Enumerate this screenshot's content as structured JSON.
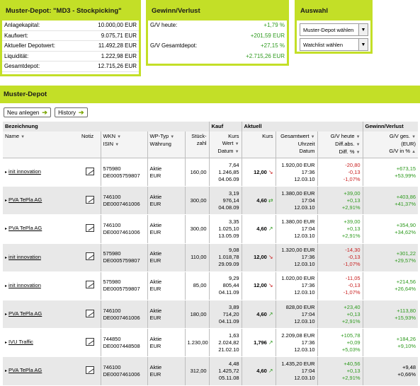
{
  "depot_summary": {
    "title": "Muster-Depot: \"MD3 - Stockpicking\"",
    "rows": [
      {
        "label": "Anlagekapital:",
        "value": "10.000,00 EUR"
      },
      {
        "label": "Kaufwert:",
        "value": "9.075,71 EUR"
      },
      {
        "label": "Aktueller Depotwert:",
        "value": "11.492,28 EUR"
      },
      {
        "label": "Liquidität:",
        "value": "1.222,98 EUR"
      },
      {
        "label": "Gesamtdepot:",
        "value": "12.715,26 EUR"
      }
    ]
  },
  "gv_panel": {
    "title": "Gewinn/Verlust",
    "heute_label": "G/V heute:",
    "heute_pct": "+1,79 %",
    "heute_abs": "+201,59 EUR",
    "gesamt_label": "G/V Gesamtdepot:",
    "gesamt_pct": "+27,15 %",
    "gesamt_abs": "+2.715,26 EUR"
  },
  "auswahl": {
    "title": "Auswahl",
    "select1": "Muster-Depot wählen",
    "select2": "Watchlist wählen"
  },
  "muster_depot": {
    "title": "Muster-Depot",
    "btn_new": "Neu anlegen",
    "btn_history": "History"
  },
  "table_headers": {
    "bezeichnung": "Bezeichnung",
    "kauf": "Kauf",
    "aktuell": "Aktuell",
    "gv": "Gewinn/Verlust",
    "name": "Name",
    "notiz": "Notiz",
    "wkn": "WKN",
    "isin": "ISIN",
    "wptyp": "WP-Typ",
    "waehrung": "Währung",
    "stueck1": "Stück-",
    "stueck2": "zahl",
    "kurs_k": "Kurs",
    "wert_k": "Wert",
    "datum_k": "Datum",
    "kurs_a": "Kurs",
    "gesamtwert": "Gesamtwert",
    "uhrzeit": "Uhrzeit",
    "datum_a": "Datum",
    "gvheute": "G/V heute",
    "diffabs": "Diff.abs.",
    "diffpct": "Diff. %",
    "gvges1": "G/V ges.",
    "gvges2": "(EUR)",
    "gvges3": "G/V in %"
  },
  "rows": [
    {
      "name": "init innovation",
      "wkn": "575980",
      "isin": "DE0005759807",
      "typ": "Aktie",
      "cur": "EUR",
      "stk": "160,00",
      "kk": "7,64",
      "kw": "1.246,85",
      "kd": "04.06.09",
      "kurs": "12,00",
      "trend": "down",
      "gw": "1.920,00 EUR",
      "zeit": "17:36",
      "datum": "12.03.10",
      "h1": "-20,80",
      "h2": "-0,13",
      "h3": "-1,07%",
      "hs": "neg",
      "g1": "+673,15",
      "g2": "+53,99%",
      "gs": "pos"
    },
    {
      "name": "PVA TePla AG",
      "wkn": "746100",
      "isin": "DE0007461006",
      "typ": "Aktie",
      "cur": "EUR",
      "stk": "300,00",
      "kk": "3,19",
      "kw": "976,14",
      "kd": "04.08.09",
      "kurs": "4,60",
      "trend": "eq",
      "gw": "1.380,00 EUR",
      "zeit": "17:04",
      "datum": "12.03.10",
      "h1": "+39,00",
      "h2": "+0,13",
      "h3": "+2,91%",
      "hs": "pos",
      "g1": "+403,86",
      "g2": "+41,37%",
      "gs": "pos"
    },
    {
      "name": "PVA TePla AG",
      "wkn": "746100",
      "isin": "DE0007461006",
      "typ": "Aktie",
      "cur": "EUR",
      "stk": "300,00",
      "kk": "3,35",
      "kw": "1.025,10",
      "kd": "13.05.09",
      "kurs": "4,60",
      "trend": "up",
      "gw": "1.380,00 EUR",
      "zeit": "17:04",
      "datum": "12.03.10",
      "h1": "+39,00",
      "h2": "+0,13",
      "h3": "+2,91%",
      "hs": "pos",
      "g1": "+354,90",
      "g2": "+34,62%",
      "gs": "pos"
    },
    {
      "name": "init innovation",
      "wkn": "575980",
      "isin": "DE0005759807",
      "typ": "Aktie",
      "cur": "EUR",
      "stk": "110,00",
      "kk": "9,08",
      "kw": "1.018,78",
      "kd": "29.09.09",
      "kurs": "12,00",
      "trend": "down",
      "gw": "1.320,00 EUR",
      "zeit": "17:36",
      "datum": "12.03.10",
      "h1": "-14,30",
      "h2": "-0,13",
      "h3": "-1,07%",
      "hs": "neg",
      "g1": "+301,22",
      "g2": "+29,57%",
      "gs": "pos"
    },
    {
      "name": "init innovation",
      "wkn": "575980",
      "isin": "DE0005759807",
      "typ": "Aktie",
      "cur": "EUR",
      "stk": "85,00",
      "kk": "9,29",
      "kw": "805,44",
      "kd": "04.11.09",
      "kurs": "12,00",
      "trend": "down",
      "gw": "1.020,00 EUR",
      "zeit": "17:36",
      "datum": "12.03.10",
      "h1": "-11,05",
      "h2": "-0,13",
      "h3": "-1,07%",
      "hs": "neg",
      "g1": "+214,56",
      "g2": "+26,64%",
      "gs": "pos"
    },
    {
      "name": "PVA TePla AG",
      "wkn": "746100",
      "isin": "DE0007461006",
      "typ": "Aktie",
      "cur": "EUR",
      "stk": "180,00",
      "kk": "3,89",
      "kw": "714,20",
      "kd": "04.11.09",
      "kurs": "4,60",
      "trend": "up",
      "gw": "828,00 EUR",
      "zeit": "17:04",
      "datum": "12.03.10",
      "h1": "+23,40",
      "h2": "+0,13",
      "h3": "+2,91%",
      "hs": "pos",
      "g1": "+113,80",
      "g2": "+15,93%",
      "gs": "pos"
    },
    {
      "name": "IVU Traffic",
      "wkn": "744850",
      "isin": "DE0007448508",
      "typ": "Aktie",
      "cur": "EUR",
      "stk": "1.230,00",
      "kk": "1,63",
      "kw": "2.024,82",
      "kd": "21.02.10",
      "kurs": "1,796",
      "trend": "up",
      "gw": "2.209,08 EUR",
      "zeit": "17:36",
      "datum": "12.03.10",
      "h1": "+105,78",
      "h2": "+0,09",
      "h3": "+5,03%",
      "hs": "pos",
      "g1": "+184,26",
      "g2": "+9,10%",
      "gs": "pos"
    },
    {
      "name": "PVA TePla AG",
      "wkn": "746100",
      "isin": "DE0007461006",
      "typ": "Aktie",
      "cur": "EUR",
      "stk": "312,00",
      "kk": "4,48",
      "kw": "1.425,72",
      "kd": "05.11.08",
      "kurs": "4,60",
      "trend": "up",
      "gw": "1.435,20 EUR",
      "zeit": "17:04",
      "datum": "12.03.10",
      "h1": "+40,56",
      "h2": "+0,13",
      "h3": "+2,91%",
      "hs": "pos",
      "g1": "+9,48",
      "g2": "+0,66%",
      "gs": "plain"
    }
  ]
}
